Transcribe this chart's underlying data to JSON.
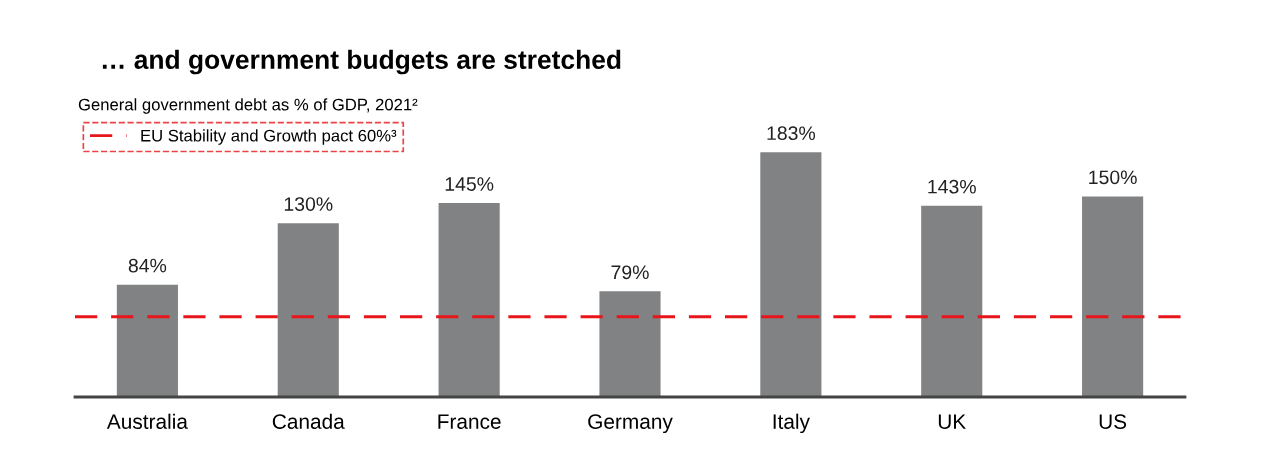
{
  "chart_data": {
    "type": "bar",
    "title": "… and government budgets are stretched",
    "subtitle": "General government debt as % of GDP, 2021²",
    "categories": [
      "Australia",
      "Canada",
      "France",
      "Germany",
      "Italy",
      "UK",
      "US"
    ],
    "values": [
      84,
      130,
      145,
      79,
      183,
      143,
      150
    ],
    "value_labels": [
      "84%",
      "130%",
      "145%",
      "79%",
      "183%",
      "143%",
      "150%"
    ],
    "color": "#808283",
    "ref_lines": [
      {
        "axis": "y",
        "value": 60,
        "label": "EU Stability and Growth pact 60%³",
        "color": "#e8151b",
        "line_style": "dashed"
      }
    ],
    "grid": false,
    "legend": "top left"
  }
}
